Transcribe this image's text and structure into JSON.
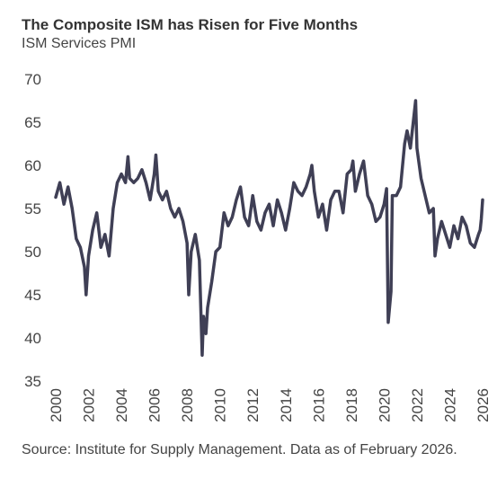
{
  "chart_data": {
    "type": "line",
    "title": "The Composite ISM has Risen for Five Months",
    "subtitle": "ISM Services PMI",
    "source": "Source: Institute for Supply Management. Data as of February 2026.",
    "xlim": [
      2000,
      2026
    ],
    "xticks": [
      2000,
      2002,
      2004,
      2006,
      2008,
      2010,
      2012,
      2014,
      2016,
      2018,
      2020,
      2022,
      2024,
      2026
    ],
    "ylim": [
      35,
      70
    ],
    "yticks": [
      35,
      40,
      45,
      50,
      55,
      60,
      65,
      70
    ],
    "grid": false,
    "x": [
      2000.0,
      2000.25,
      2000.5,
      2000.75,
      2001.0,
      2001.25,
      2001.5,
      2001.75,
      2001.85,
      2002.0,
      2002.25,
      2002.5,
      2002.75,
      2003.0,
      2003.25,
      2003.5,
      2003.75,
      2004.0,
      2004.25,
      2004.4,
      2004.5,
      2004.75,
      2005.0,
      2005.25,
      2005.5,
      2005.75,
      2006.0,
      2006.1,
      2006.25,
      2006.5,
      2006.75,
      2007.0,
      2007.25,
      2007.5,
      2007.75,
      2008.0,
      2008.1,
      2008.25,
      2008.5,
      2008.75,
      2008.92,
      2009.0,
      2009.15,
      2009.25,
      2009.5,
      2009.75,
      2010.0,
      2010.25,
      2010.5,
      2010.75,
      2011.0,
      2011.25,
      2011.5,
      2011.75,
      2012.0,
      2012.25,
      2012.5,
      2012.75,
      2013.0,
      2013.25,
      2013.5,
      2013.75,
      2014.0,
      2014.25,
      2014.5,
      2014.75,
      2015.0,
      2015.25,
      2015.5,
      2015.6,
      2015.75,
      2016.0,
      2016.25,
      2016.5,
      2016.75,
      2017.0,
      2017.25,
      2017.5,
      2017.75,
      2018.0,
      2018.1,
      2018.25,
      2018.5,
      2018.75,
      2019.0,
      2019.25,
      2019.5,
      2019.75,
      2020.0,
      2020.15,
      2020.25,
      2020.42,
      2020.5,
      2020.75,
      2021.0,
      2021.25,
      2021.4,
      2021.6,
      2021.92,
      2022.0,
      2022.25,
      2022.5,
      2022.75,
      2023.0,
      2023.1,
      2023.25,
      2023.5,
      2023.75,
      2024.0,
      2024.25,
      2024.5,
      2024.75,
      2025.0,
      2025.25,
      2025.5,
      2025.75,
      2025.85,
      2025.92,
      2026.0
    ],
    "series": [
      {
        "name": "ISM Services PMI",
        "color": "#3f3f55",
        "values": [
          56.3,
          58.0,
          55.5,
          57.5,
          55.0,
          51.5,
          50.5,
          48.2,
          45.0,
          49.5,
          52.5,
          54.5,
          50.5,
          52.0,
          49.5,
          55.0,
          58.0,
          59.0,
          58.0,
          61.0,
          58.5,
          58.0,
          58.5,
          59.5,
          58.0,
          56.0,
          59.0,
          61.2,
          57.0,
          56.0,
          57.0,
          55.0,
          54.0,
          55.0,
          53.5,
          51.0,
          45.0,
          50.0,
          52.0,
          49.0,
          38.0,
          42.5,
          40.5,
          43.5,
          46.5,
          50.0,
          50.5,
          54.5,
          53.0,
          54.0,
          56.0,
          57.5,
          54.0,
          53.0,
          56.5,
          53.5,
          52.5,
          54.5,
          55.5,
          53.0,
          56.0,
          54.5,
          52.5,
          55.0,
          58.0,
          57.0,
          56.5,
          57.5,
          59.0,
          60.0,
          57.0,
          54.0,
          55.5,
          52.5,
          56.0,
          57.0,
          57.0,
          54.5,
          59.0,
          59.5,
          60.5,
          57.0,
          59.0,
          60.5,
          56.5,
          55.5,
          53.5,
          54.0,
          55.5,
          57.3,
          41.8,
          45.4,
          56.5,
          56.5,
          57.5,
          62.5,
          64.0,
          62.0,
          67.5,
          62.0,
          58.5,
          56.5,
          54.5,
          55.0,
          49.5,
          51.5,
          53.5,
          52.0,
          50.5,
          53.0,
          51.5,
          54.0,
          53.0,
          51.0,
          50.5,
          52.0,
          52.5,
          53.8,
          56.0
        ]
      }
    ]
  }
}
